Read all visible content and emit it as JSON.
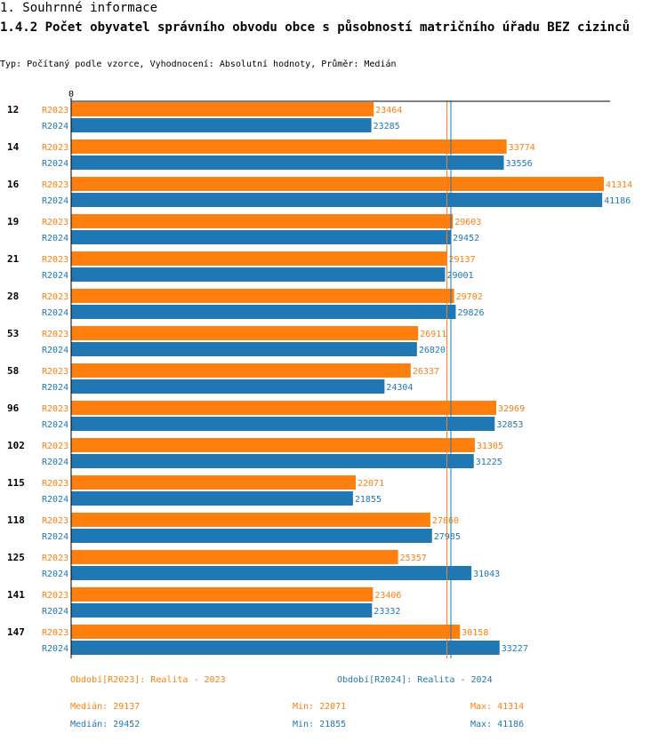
{
  "header": {
    "section": "1. Souhrnné informace",
    "title": "1.4.2 Počet obyvatel správního obvodu obce s působností matričního úřadu BEZ cizinců",
    "subtitle": "Typ: Počítaný podle vzorce, Vyhodnocení: Absolutní hodnoty, Průměr: Medián"
  },
  "colors": {
    "r2023": "#ff7f0e",
    "r2024": "#1f77b4",
    "axis": "#000000"
  },
  "chart_data": {
    "type": "bar",
    "orientation": "horizontal",
    "title": "1.4.2 Počet obyvatel správního obvodu obce s působností matričního úřadu BEZ cizinců",
    "axis_zero_label": "0",
    "xlim": [
      0,
      41314
    ],
    "categories": [
      "12",
      "14",
      "16",
      "19",
      "21",
      "28",
      "53",
      "58",
      "96",
      "102",
      "115",
      "118",
      "125",
      "141",
      "147"
    ],
    "series": [
      {
        "name": "R2023",
        "values": [
          23464,
          33774,
          41314,
          29603,
          29137,
          29702,
          26911,
          26337,
          32969,
          31305,
          22071,
          27860,
          25357,
          23406,
          30158
        ]
      },
      {
        "name": "R2024",
        "values": [
          23285,
          33556,
          41186,
          29452,
          29001,
          29826,
          26820,
          24304,
          32853,
          31225,
          21855,
          27985,
          31043,
          23332,
          33227
        ]
      }
    ],
    "median_lines": [
      {
        "series": "R2023",
        "value": 29137
      },
      {
        "series": "R2024",
        "value": 29452
      }
    ]
  },
  "legend": {
    "r2023": "Období[R2023]: Realita - 2023",
    "r2024": "Období[R2024]: Realita - 2024"
  },
  "stats": {
    "r2023": {
      "median": "Medián: 29137",
      "min": "Min: 22071",
      "max": "Max: 41314"
    },
    "r2024": {
      "median": "Medián: 29452",
      "min": "Min: 21855",
      "max": "Max: 41186"
    }
  }
}
